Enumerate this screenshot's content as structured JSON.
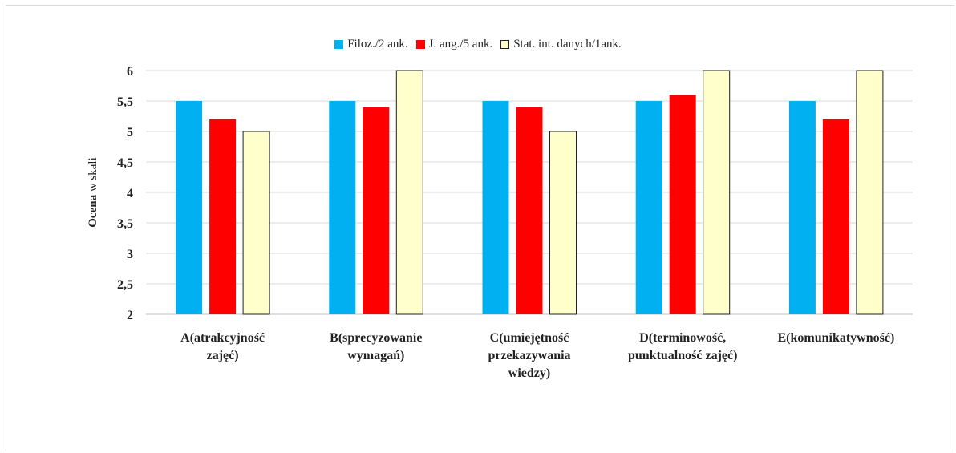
{
  "chart_data": {
    "type": "bar",
    "ylabel_bold": "Ocena",
    "ylabel_rest": " w skali",
    "ylim": [
      2,
      6
    ],
    "yticks": [
      "2",
      "2,5",
      "3",
      "3,5",
      "4",
      "4,5",
      "5",
      "5,5",
      "6"
    ],
    "ytick_values": [
      2,
      2.5,
      3,
      3.5,
      4,
      4.5,
      5,
      5.5,
      6
    ],
    "grid": true,
    "legend_position": "top-center",
    "categories": [
      [
        "A(atrakcyjność",
        "zajęć)"
      ],
      [
        "B(sprecyzowanie",
        "wymagań)"
      ],
      [
        "C(umiejętność",
        "przekazywania",
        "wiedzy)"
      ],
      [
        "D(terminowość,",
        "punktualność zajęć)"
      ],
      [
        "E(komunikatywność)"
      ]
    ],
    "series": [
      {
        "name": "Filoz./2 ank.",
        "color": "#00b0f0",
        "values": [
          5.5,
          5.5,
          5.5,
          5.5,
          5.5
        ]
      },
      {
        "name": "J. ang./5 ank.",
        "color": "#ff0000",
        "values": [
          5.2,
          5.4,
          5.4,
          5.6,
          5.2
        ]
      },
      {
        "name": "Stat. int. danych/1ank.",
        "color": "#ffffcc",
        "values": [
          5,
          6,
          5,
          6,
          6
        ]
      }
    ]
  }
}
